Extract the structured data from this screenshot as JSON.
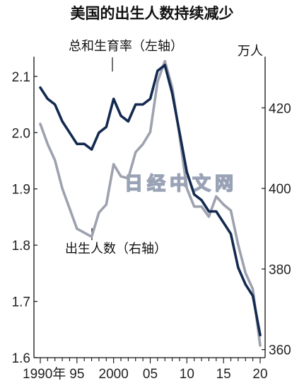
{
  "chart_data": {
    "type": "line",
    "title": "美国的出生人数持续减少",
    "watermark": "日经中文网",
    "unit_right": "万人",
    "left_axis": {
      "ticks": [
        "2.1",
        "2.0",
        "1.9",
        "1.8",
        "1.7",
        "1.6"
      ],
      "ylim": [
        1.6,
        2.13
      ]
    },
    "right_axis": {
      "ticks": [
        "420",
        "400",
        "380",
        "360"
      ],
      "ylim": [
        358,
        432
      ]
    },
    "x_ticks": [
      "1990年",
      "95",
      "2000",
      "05",
      "10",
      "15",
      "20"
    ],
    "x": [
      1990,
      1991,
      1992,
      1993,
      1994,
      1995,
      1996,
      1997,
      1998,
      1999,
      2000,
      2001,
      2002,
      2003,
      2004,
      2005,
      2006,
      2007,
      2008,
      2009,
      2010,
      2011,
      2012,
      2013,
      2014,
      2015,
      2016,
      2017,
      2018,
      2019,
      2020
    ],
    "series": [
      {
        "name": "总和生育率（左轴）",
        "axis": "left",
        "color": "#132a50",
        "values": [
          2.08,
          2.06,
          2.05,
          2.02,
          2.0,
          1.98,
          1.98,
          1.97,
          2.0,
          2.01,
          2.06,
          2.03,
          2.02,
          2.05,
          2.05,
          2.06,
          2.11,
          2.12,
          2.07,
          2.0,
          1.93,
          1.89,
          1.88,
          1.86,
          1.86,
          1.84,
          1.82,
          1.76,
          1.73,
          1.71,
          1.64
        ]
      },
      {
        "name": "出生人数（右轴）",
        "axis": "right",
        "color": "#9ea1ae",
        "values": [
          416.0,
          411.0,
          407.0,
          400.0,
          395.0,
          390.0,
          389.0,
          388.0,
          394.0,
          396.0,
          406.0,
          403.0,
          402.5,
          409.0,
          411.0,
          414.0,
          426.5,
          431.6,
          425.0,
          413.0,
          400.0,
          395.5,
          395.5,
          393.0,
          398.0,
          396.0,
          394.5,
          386.0,
          379.0,
          375.0,
          361.0
        ]
      }
    ]
  }
}
